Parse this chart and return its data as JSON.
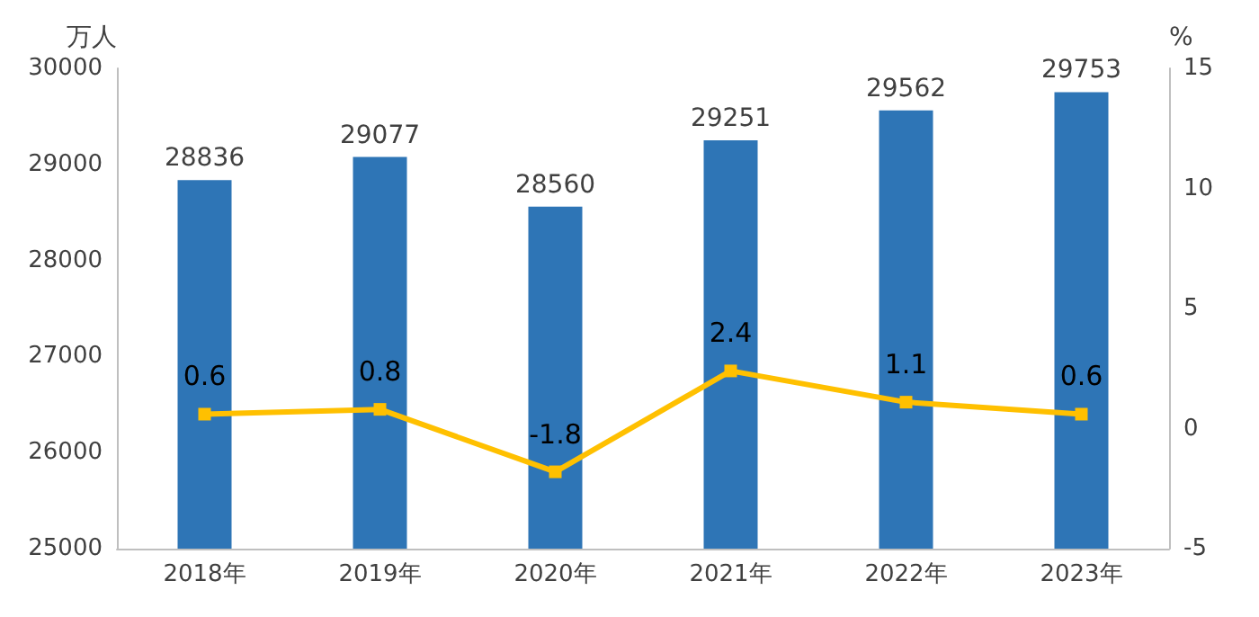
{
  "chart_data": {
    "type": "bar",
    "ylabel": "万人",
    "y2label": "%",
    "categories": [
      "2018年",
      "2019年",
      "2020年",
      "2021年",
      "2022年",
      "2023年"
    ],
    "series": [
      {
        "color": "#2e75b6",
        "values": [
          28836,
          29077,
          28560,
          29251,
          29562,
          29753
        ]
      },
      {
        "type": "line",
        "axis": "y2",
        "color": "#ffc000",
        "marker": "square",
        "values": [
          0.6,
          0.8,
          -1.8,
          2.4,
          1.1,
          0.6
        ]
      }
    ],
    "ylim": [
      25000,
      30000
    ],
    "yticks": [
      25000,
      26000,
      27000,
      28000,
      29000,
      30000
    ],
    "y2lim": [
      -5,
      15
    ],
    "y2ticks": [
      -5,
      0,
      5,
      10,
      15
    ],
    "data_labels": true,
    "grid": false
  }
}
